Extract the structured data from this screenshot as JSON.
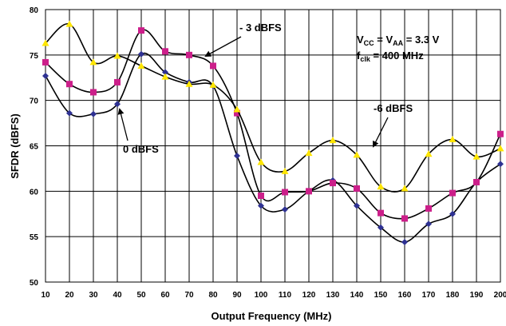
{
  "chart_data": {
    "type": "line",
    "xlabel": "Output Frequency (MHz)",
    "ylabel": "SFDR (dBFS)",
    "xlim": [
      10,
      200
    ],
    "ylim": [
      50,
      80
    ],
    "x_ticks": [
      10,
      20,
      30,
      40,
      50,
      60,
      70,
      80,
      90,
      100,
      110,
      120,
      130,
      140,
      150,
      160,
      170,
      180,
      190,
      200
    ],
    "y_ticks": [
      50,
      55,
      60,
      65,
      70,
      75,
      80
    ],
    "grid": true,
    "x": [
      10,
      20,
      30,
      40,
      50,
      60,
      70,
      80,
      90,
      100,
      110,
      120,
      130,
      140,
      150,
      160,
      170,
      180,
      190,
      200
    ],
    "series": [
      {
        "name": "0 dBFS",
        "color": "#2e3192",
        "marker": "diamond",
        "values": [
          72.7,
          68.6,
          68.5,
          69.6,
          75.1,
          73.1,
          72.0,
          71.6,
          63.9,
          58.4,
          58.0,
          60.0,
          61.2,
          58.4,
          56.0,
          54.4,
          56.4,
          57.5,
          61.0,
          63.0
        ]
      },
      {
        "name": "- 3 dBFS",
        "color": "#cc1f8a",
        "marker": "square",
        "values": [
          74.2,
          71.8,
          70.9,
          72.0,
          77.7,
          75.4,
          75.0,
          73.8,
          68.6,
          59.5,
          59.9,
          60.0,
          60.9,
          60.3,
          57.6,
          57.0,
          58.1,
          59.8,
          61.0,
          66.3
        ]
      },
      {
        "name": "-6 dBFS",
        "color": "#ffe600",
        "marker": "triangle",
        "values": [
          76.3,
          78.4,
          74.2,
          74.9,
          73.8,
          72.6,
          71.8,
          71.7,
          69.0,
          63.2,
          62.2,
          64.2,
          65.6,
          64.0,
          60.5,
          60.3,
          64.1,
          65.7,
          63.8,
          64.7
        ]
      }
    ],
    "annotations": {
      "label_0dbfs": "0 dBFS",
      "label_3dbfs": "- 3 dBFS",
      "label_6dbfs": "-6 dBFS",
      "cond_line1": {
        "v1": "V",
        "s1": "CC",
        "eq1": " = V",
        "s2": "AA",
        "eq2": " = 3.3 V"
      },
      "cond_line2": {
        "f": "f",
        "s": "clk",
        "rest": " = 400 MHz"
      }
    }
  }
}
